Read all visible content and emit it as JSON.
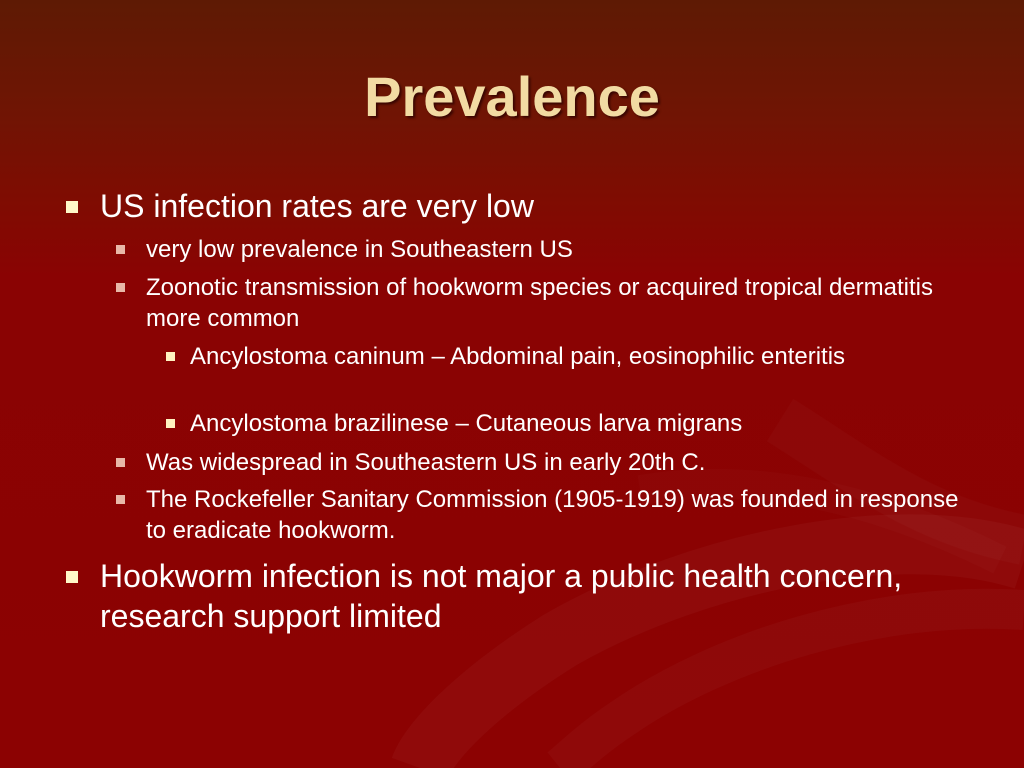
{
  "slide": {
    "title": "Prevalence",
    "bullets": [
      {
        "text": "US infection rates are very low",
        "children": [
          {
            "text": "very low prevalence in Southeastern US"
          },
          {
            "text": "Zoonotic transmission of hookworm species or acquired tropical dermatitis more common",
            "children": [
              {
                "text": "Ancylostoma caninum – Abdominal pain, eosinophilic enteritis"
              },
              {
                "text": "Ancylostoma brazilinese – Cutaneous larva migrans"
              }
            ]
          },
          {
            "text": "Was widespread in Southeastern US in early 20th C."
          },
          {
            "text": "The Rockefeller Sanitary Commission (1905-1919) was founded in response to eradicate hookworm."
          }
        ]
      },
      {
        "text": "Hookworm infection is not major a public health concern, research support limited"
      }
    ]
  },
  "colors": {
    "background": "#8c0202",
    "title": "#f2dba3",
    "text": "#ffffff"
  }
}
